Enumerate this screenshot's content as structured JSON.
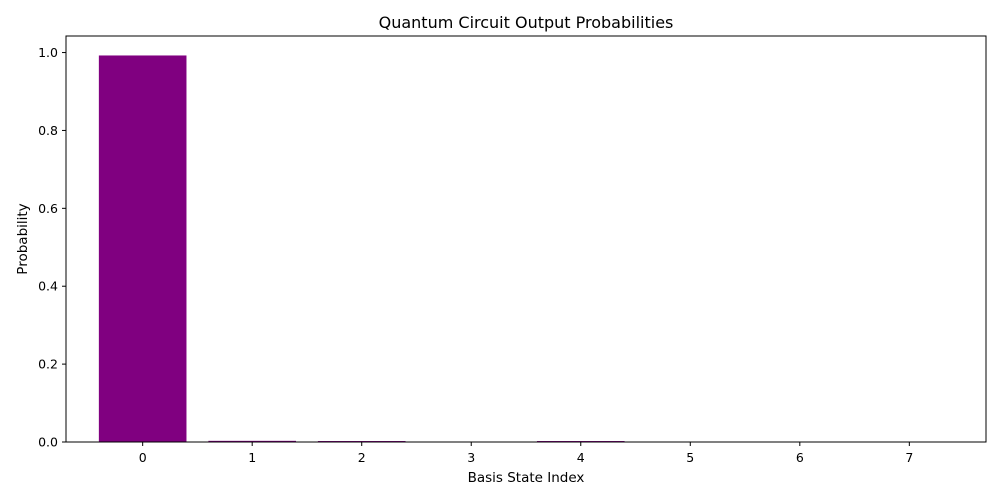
{
  "chart_data": {
    "type": "bar",
    "title": "Quantum Circuit Output Probabilities",
    "xlabel": "Basis State Index",
    "ylabel": "Probability",
    "categories": [
      "0",
      "1",
      "2",
      "3",
      "4",
      "5",
      "6",
      "7"
    ],
    "values": [
      0.9925,
      0.003,
      0.0025,
      0.0,
      0.0025,
      0.0,
      0.0,
      0.0
    ],
    "ylim": [
      0,
      1.0425
    ],
    "yticks": [
      "0.0",
      "0.2",
      "0.4",
      "0.6",
      "0.8",
      "1.0"
    ],
    "grid": false,
    "bar_color": "#800080"
  }
}
